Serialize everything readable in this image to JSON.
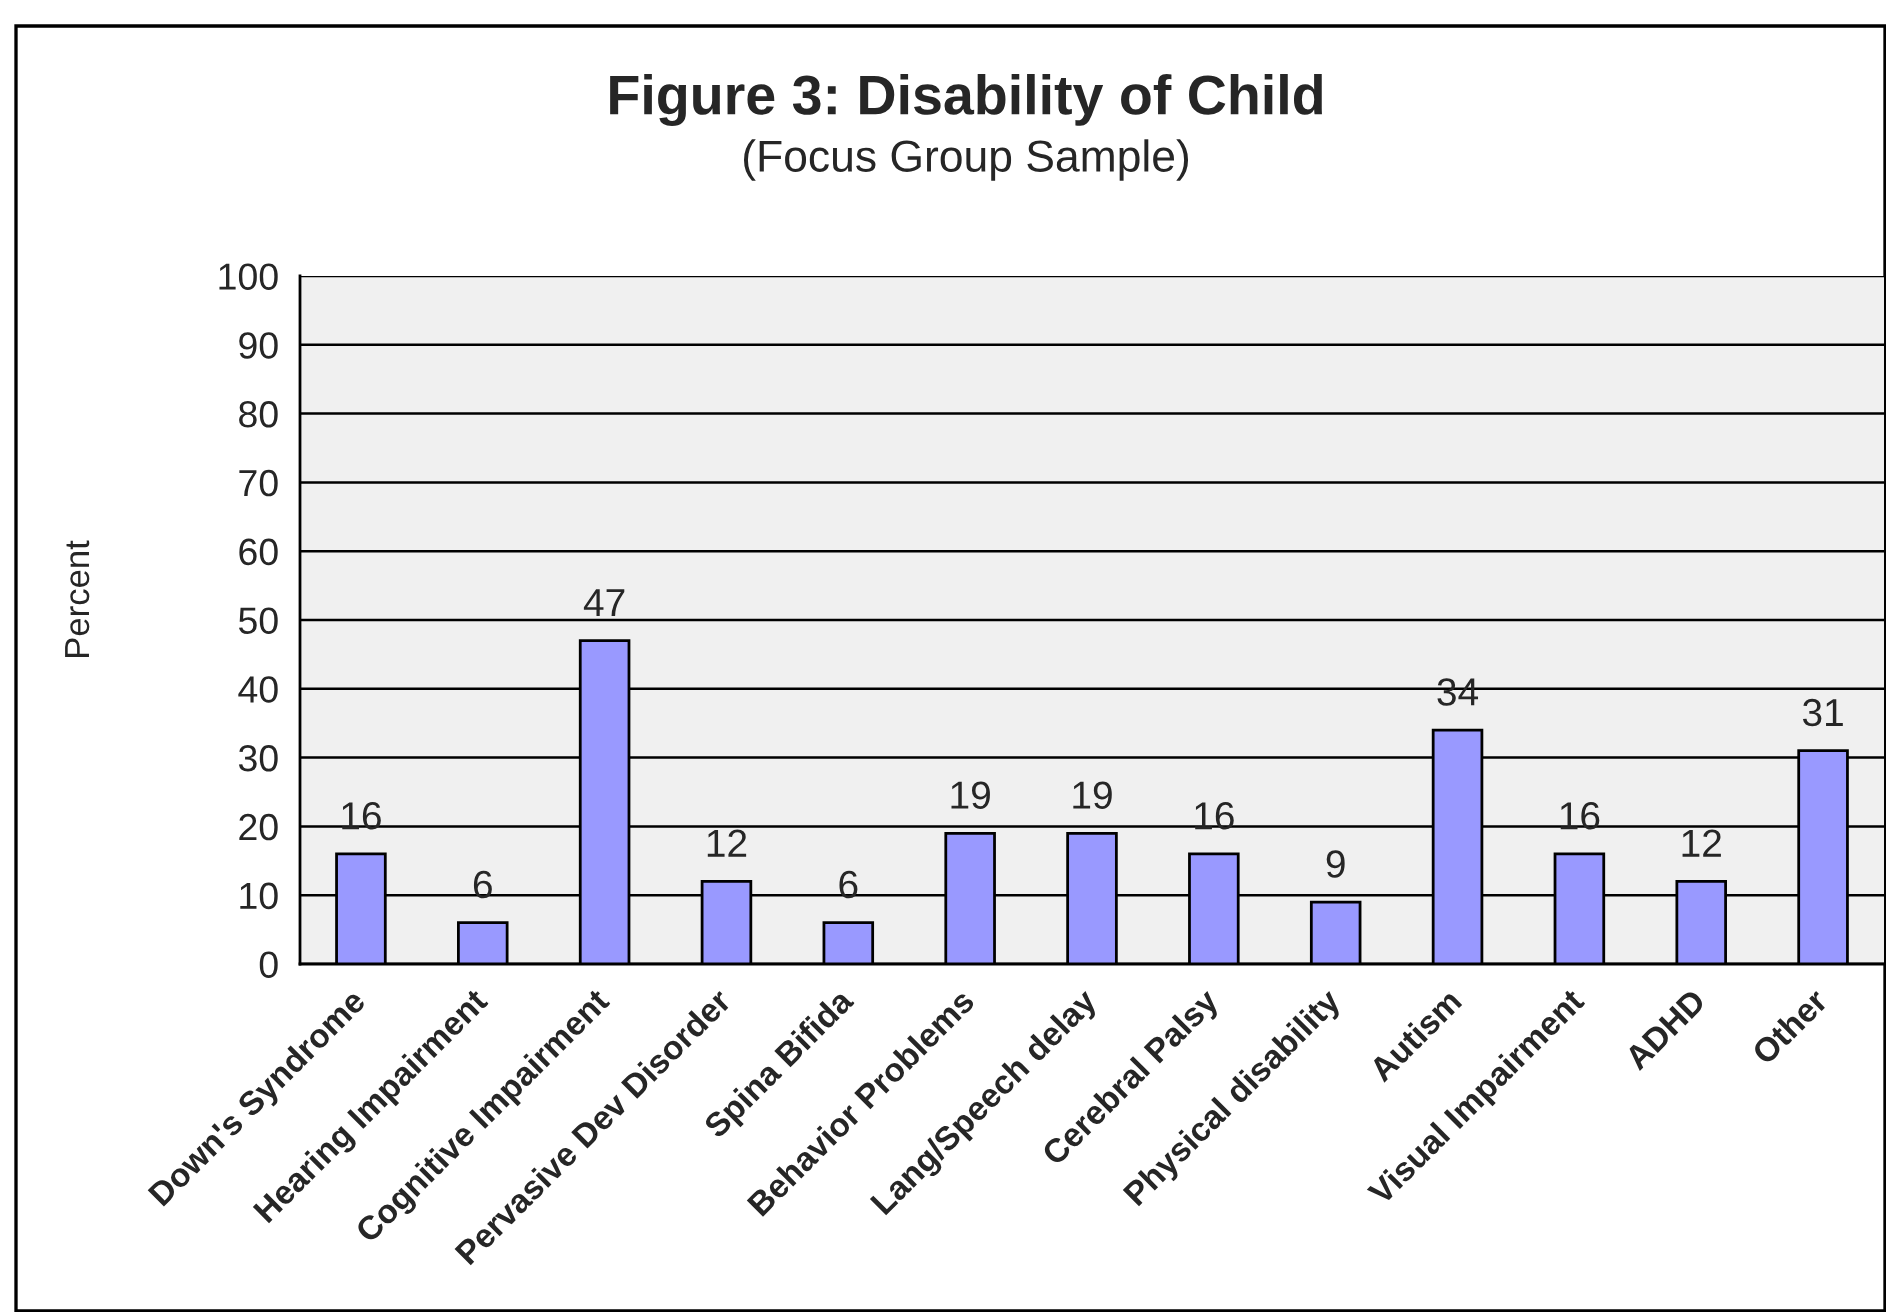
{
  "chart_data": {
    "type": "bar",
    "title": "Figure 3: Disability of Child",
    "subtitle": "(Focus Group Sample)",
    "ylabel": "Percent",
    "categories": [
      "Down's Syndrome",
      "Hearing Impairment",
      "Cognitive Impairment",
      "Pervasive Dev Disorder",
      "Spina Bifida",
      "Behavior Problems",
      "Lang/Speech delay",
      "Cerebral Palsy",
      "Physical disability",
      "Autism",
      "Visual Impairment",
      "ADHD",
      "Other"
    ],
    "values": [
      16,
      6,
      47,
      12,
      6,
      19,
      19,
      16,
      9,
      34,
      16,
      12,
      31
    ],
    "color": "#9999ff",
    "ylim": [
      0,
      100
    ],
    "yticks": [
      0,
      10,
      20,
      30,
      40,
      50,
      60,
      70,
      80,
      90,
      100
    ],
    "grid": "y",
    "data_labels": true,
    "legend": false
  }
}
